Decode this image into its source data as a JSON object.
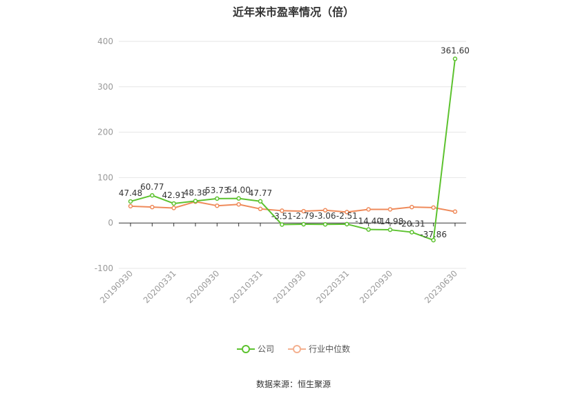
{
  "title": "近年来市盈率情况（倍）",
  "source": "数据来源：恒生聚源",
  "colors": {
    "company": "#5cc22e",
    "industry": "#ef8a5a",
    "grid": "#e6e6e6",
    "axis": "#333333",
    "tick_text": "#999999",
    "label_text": "#333333"
  },
  "chart_data": {
    "type": "line",
    "title": "近年来市盈率情况（倍）",
    "xlabel": "",
    "ylabel": "",
    "ylim": [
      -100,
      400
    ],
    "yticks": [
      -100,
      0,
      100,
      200,
      300,
      400
    ],
    "grid": true,
    "legend_position": "bottom",
    "x": [
      "20190930",
      "20191231",
      "20200331",
      "20200630",
      "20200930",
      "20201231",
      "20210331",
      "20210630",
      "20210930",
      "20211231",
      "20220331",
      "20220630",
      "20220930",
      "20221231",
      "20230331",
      "20230630"
    ],
    "x_tick_labels": [
      "20190930",
      "20200331",
      "20200930",
      "20210331",
      "20210930",
      "20220331",
      "20220930",
      "20230630"
    ],
    "series": [
      {
        "name": "公司",
        "values": [
          47.48,
          60.77,
          42.91,
          48.38,
          53.73,
          54.0,
          47.77,
          -3.51,
          -2.79,
          -3.06,
          -2.51,
          -14.4,
          -14.98,
          -20.31,
          -37.86,
          361.6
        ],
        "labels": [
          "47.48",
          "60.77",
          "42.91",
          "48.38",
          "53.73",
          "54.00",
          "47.77",
          "-3.51",
          "-2.79",
          "-3.06",
          "-2.51",
          "-14.40",
          "-14.98",
          "-20.31",
          "-37.86",
          "361.60"
        ]
      },
      {
        "name": "行业中位数",
        "values": [
          37,
          35,
          33,
          47,
          38,
          41,
          31,
          27,
          26,
          28,
          24,
          30,
          30,
          35,
          34,
          25
        ]
      }
    ]
  }
}
